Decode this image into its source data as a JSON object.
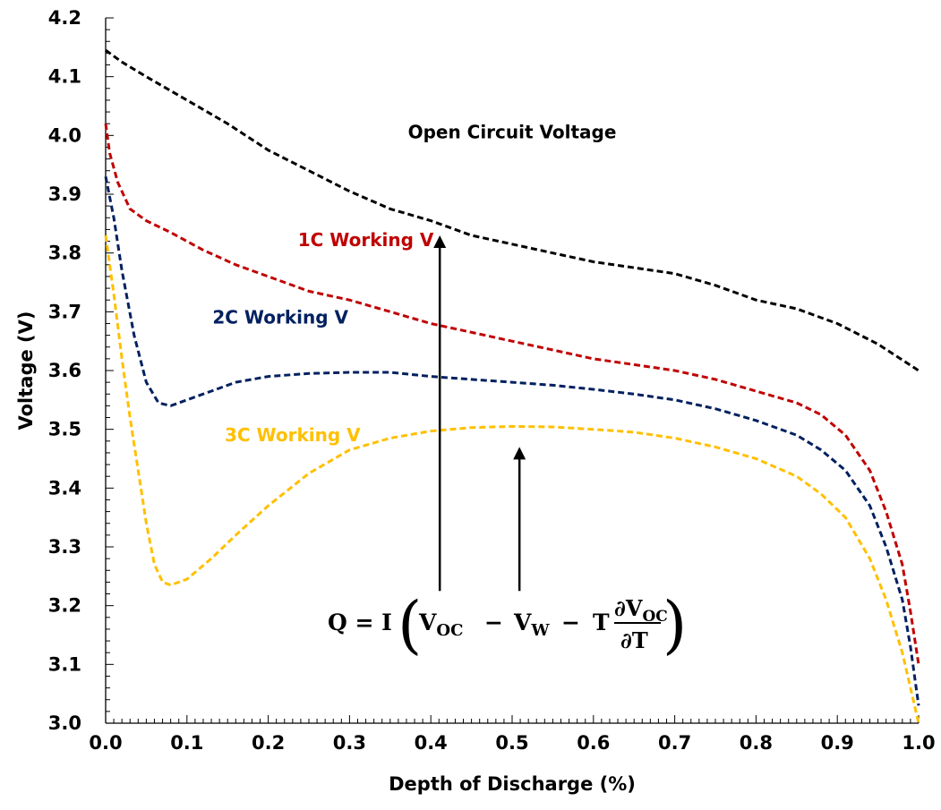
{
  "chart_data": {
    "type": "line",
    "xlabel": "Depth of Discharge (%)",
    "ylabel": "Voltage (V)",
    "xlim": [
      0.0,
      1.0
    ],
    "ylim": [
      3.0,
      4.2
    ],
    "x_ticks": [
      "0.0",
      "0.1",
      "0.2",
      "0.3",
      "0.4",
      "0.5",
      "0.6",
      "0.7",
      "0.8",
      "0.9",
      "1.0"
    ],
    "y_ticks": [
      "3.0",
      "3.1",
      "3.2",
      "3.3",
      "3.4",
      "3.5",
      "3.6",
      "3.7",
      "3.8",
      "3.9",
      "4.0",
      "4.1",
      "4.2"
    ],
    "grid": false,
    "line_style": "dashed",
    "series": [
      {
        "name": "Open Circuit Voltage",
        "color": "#000000",
        "points": [
          [
            0.0,
            4.145
          ],
          [
            0.02,
            4.125
          ],
          [
            0.05,
            4.1
          ],
          [
            0.1,
            4.06
          ],
          [
            0.15,
            4.02
          ],
          [
            0.2,
            3.975
          ],
          [
            0.25,
            3.94
          ],
          [
            0.3,
            3.905
          ],
          [
            0.35,
            3.875
          ],
          [
            0.4,
            3.855
          ],
          [
            0.45,
            3.83
          ],
          [
            0.5,
            3.815
          ],
          [
            0.55,
            3.8
          ],
          [
            0.6,
            3.785
          ],
          [
            0.65,
            3.775
          ],
          [
            0.7,
            3.765
          ],
          [
            0.75,
            3.745
          ],
          [
            0.8,
            3.72
          ],
          [
            0.85,
            3.705
          ],
          [
            0.9,
            3.68
          ],
          [
            0.95,
            3.645
          ],
          [
            1.0,
            3.6
          ]
        ]
      },
      {
        "name": "1C Working V",
        "color": "#C00000",
        "points": [
          [
            0.0,
            4.02
          ],
          [
            0.005,
            3.97
          ],
          [
            0.015,
            3.92
          ],
          [
            0.03,
            3.875
          ],
          [
            0.05,
            3.855
          ],
          [
            0.08,
            3.835
          ],
          [
            0.12,
            3.805
          ],
          [
            0.16,
            3.78
          ],
          [
            0.2,
            3.76
          ],
          [
            0.25,
            3.735
          ],
          [
            0.3,
            3.72
          ],
          [
            0.35,
            3.7
          ],
          [
            0.4,
            3.68
          ],
          [
            0.45,
            3.665
          ],
          [
            0.5,
            3.65
          ],
          [
            0.55,
            3.635
          ],
          [
            0.6,
            3.62
          ],
          [
            0.65,
            3.61
          ],
          [
            0.7,
            3.6
          ],
          [
            0.75,
            3.585
          ],
          [
            0.8,
            3.565
          ],
          [
            0.85,
            3.545
          ],
          [
            0.88,
            3.525
          ],
          [
            0.91,
            3.49
          ],
          [
            0.94,
            3.43
          ],
          [
            0.96,
            3.36
          ],
          [
            0.98,
            3.27
          ],
          [
            0.99,
            3.19
          ],
          [
            1.0,
            3.1
          ]
        ]
      },
      {
        "name": "2C Working V",
        "color": "#002060",
        "points": [
          [
            0.0,
            3.93
          ],
          [
            0.01,
            3.86
          ],
          [
            0.02,
            3.77
          ],
          [
            0.035,
            3.66
          ],
          [
            0.05,
            3.58
          ],
          [
            0.065,
            3.545
          ],
          [
            0.08,
            3.54
          ],
          [
            0.1,
            3.55
          ],
          [
            0.13,
            3.565
          ],
          [
            0.16,
            3.58
          ],
          [
            0.2,
            3.59
          ],
          [
            0.25,
            3.595
          ],
          [
            0.3,
            3.597
          ],
          [
            0.35,
            3.597
          ],
          [
            0.4,
            3.59
          ],
          [
            0.45,
            3.585
          ],
          [
            0.5,
            3.58
          ],
          [
            0.55,
            3.575
          ],
          [
            0.6,
            3.568
          ],
          [
            0.65,
            3.56
          ],
          [
            0.7,
            3.55
          ],
          [
            0.75,
            3.535
          ],
          [
            0.8,
            3.515
          ],
          [
            0.85,
            3.49
          ],
          [
            0.88,
            3.465
          ],
          [
            0.91,
            3.43
          ],
          [
            0.94,
            3.37
          ],
          [
            0.96,
            3.3
          ],
          [
            0.98,
            3.21
          ],
          [
            0.99,
            3.13
          ],
          [
            1.0,
            3.03
          ]
        ]
      },
      {
        "name": "3C Working V",
        "color": "#FFC000",
        "points": [
          [
            0.0,
            3.83
          ],
          [
            0.01,
            3.73
          ],
          [
            0.02,
            3.62
          ],
          [
            0.03,
            3.52
          ],
          [
            0.04,
            3.43
          ],
          [
            0.05,
            3.34
          ],
          [
            0.06,
            3.27
          ],
          [
            0.07,
            3.24
          ],
          [
            0.08,
            3.235
          ],
          [
            0.1,
            3.245
          ],
          [
            0.13,
            3.28
          ],
          [
            0.16,
            3.32
          ],
          [
            0.2,
            3.37
          ],
          [
            0.25,
            3.425
          ],
          [
            0.3,
            3.465
          ],
          [
            0.35,
            3.485
          ],
          [
            0.4,
            3.497
          ],
          [
            0.45,
            3.503
          ],
          [
            0.5,
            3.505
          ],
          [
            0.55,
            3.504
          ],
          [
            0.6,
            3.5
          ],
          [
            0.65,
            3.495
          ],
          [
            0.7,
            3.485
          ],
          [
            0.75,
            3.47
          ],
          [
            0.8,
            3.45
          ],
          [
            0.85,
            3.42
          ],
          [
            0.88,
            3.39
          ],
          [
            0.91,
            3.35
          ],
          [
            0.94,
            3.28
          ],
          [
            0.96,
            3.21
          ],
          [
            0.98,
            3.12
          ],
          [
            0.99,
            3.06
          ],
          [
            1.0,
            3.0
          ]
        ]
      }
    ],
    "series_labels": [
      {
        "text": "Open Circuit Voltage",
        "color": "#000000",
        "x": 0.5,
        "y": 3.995
      },
      {
        "text": "1C Working V",
        "color": "#C00000",
        "x": 0.32,
        "y": 3.812
      },
      {
        "text": "2C Working V",
        "color": "#002060",
        "x": 0.215,
        "y": 3.68
      },
      {
        "text": "3C Working V",
        "color": "#FFC000",
        "x": 0.23,
        "y": 3.48
      }
    ],
    "annotations": {
      "arrows": [
        {
          "x": 0.411,
          "y_from": 3.225,
          "y_to": 3.83
        },
        {
          "x": 0.509,
          "y_from": 3.225,
          "y_to": 3.47
        }
      ],
      "equation": {
        "prefix": "Q = I",
        "open": "(",
        "term1": "V",
        "term1_sub": "OC",
        "minus1": "−",
        "term2": "V",
        "term2_sub": "W",
        "minus2": "−",
        "term3": "T",
        "frac_num": "∂V",
        "frac_num_sub": "OC",
        "frac_den": "∂T",
        "close": ")"
      }
    }
  }
}
